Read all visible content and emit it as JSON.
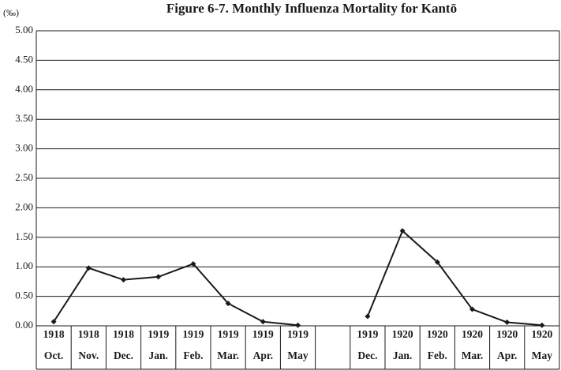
{
  "chart_data": {
    "type": "line",
    "title": "Figure 6-7. Monthly Influenza Mortality for Kantō",
    "y_unit": "(‰)",
    "categories": [
      [
        "1918",
        "Oct."
      ],
      [
        "1918",
        "Nov."
      ],
      [
        "1918",
        "Dec."
      ],
      [
        "1919",
        "Jan."
      ],
      [
        "1919",
        "Feb."
      ],
      [
        "1919",
        "Mar."
      ],
      [
        "1919",
        "Apr."
      ],
      [
        "1919",
        "May"
      ],
      null,
      [
        "1919",
        "Dec."
      ],
      [
        "1920",
        "Jan."
      ],
      [
        "1920",
        "Feb."
      ],
      [
        "1920",
        "Mar."
      ],
      [
        "1920",
        "Apr."
      ],
      [
        "1920",
        "May"
      ]
    ],
    "series": [
      {
        "color": "#1a1a1a",
        "values": [
          0.07,
          0.98,
          0.78,
          0.83,
          1.05,
          0.38,
          0.07,
          0.01,
          null,
          0.16,
          1.61,
          1.08,
          0.28,
          0.06,
          0.01
        ]
      }
    ],
    "ylim": [
      0,
      5
    ],
    "yticks": [
      {
        "value": 0,
        "label": "0.00"
      },
      {
        "value": 0.5,
        "label": "0.50"
      },
      {
        "value": 1,
        "label": "1.00"
      },
      {
        "value": 1.5,
        "label": "1.50"
      },
      {
        "value": 2,
        "label": "2.00"
      },
      {
        "value": 2.5,
        "label": "2.50"
      },
      {
        "value": 3,
        "label": "3.00"
      },
      {
        "value": 3.5,
        "label": "3.50"
      },
      {
        "value": 4,
        "label": "4.00"
      },
      {
        "value": 4.5,
        "label": "4.50"
      },
      {
        "value": 5,
        "label": "5.00"
      }
    ],
    "grid": true
  }
}
